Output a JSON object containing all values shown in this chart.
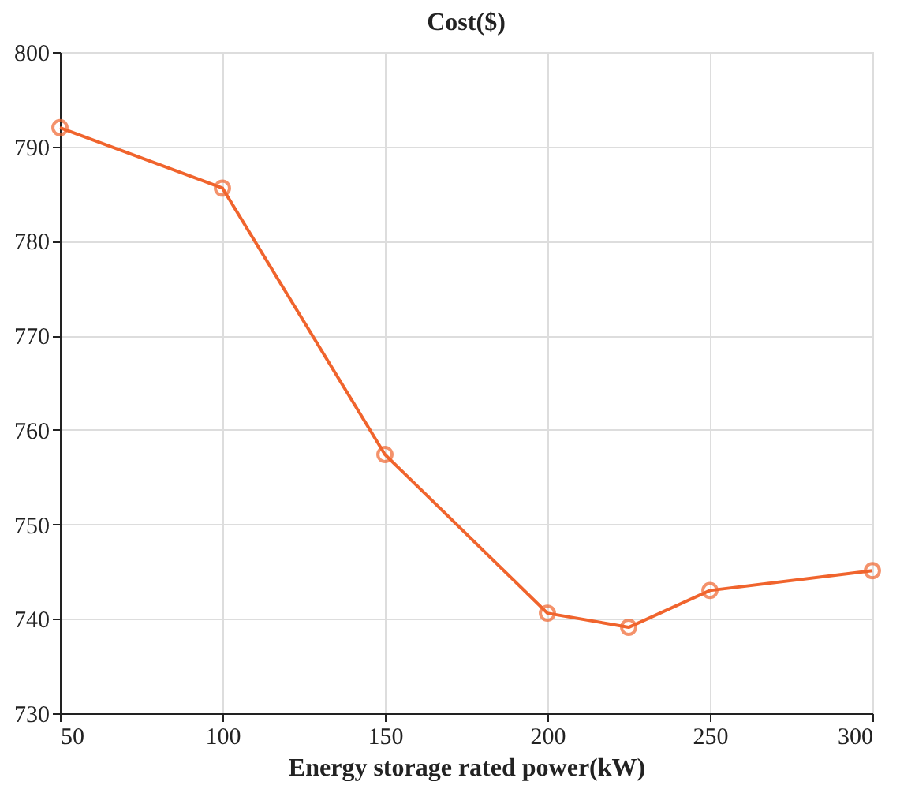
{
  "chart_data": {
    "type": "line",
    "title": "Cost($)",
    "xlabel": "Energy storage rated power(kW)",
    "x": [
      50,
      100,
      150,
      200,
      225,
      250,
      300
    ],
    "series": [
      {
        "color": "#f0642d",
        "values": [
          792,
          785.6,
          757.4,
          740.6,
          739.1,
          743,
          745.1
        ]
      }
    ],
    "xlim": [
      50,
      300
    ],
    "xticks": [
      50,
      100,
      150,
      200,
      250,
      300
    ],
    "ylim": [
      730,
      800
    ],
    "yticks": [
      730,
      740,
      750,
      760,
      770,
      780,
      790,
      800
    ],
    "grid": true,
    "marker": "circle",
    "line_style": "solid"
  }
}
